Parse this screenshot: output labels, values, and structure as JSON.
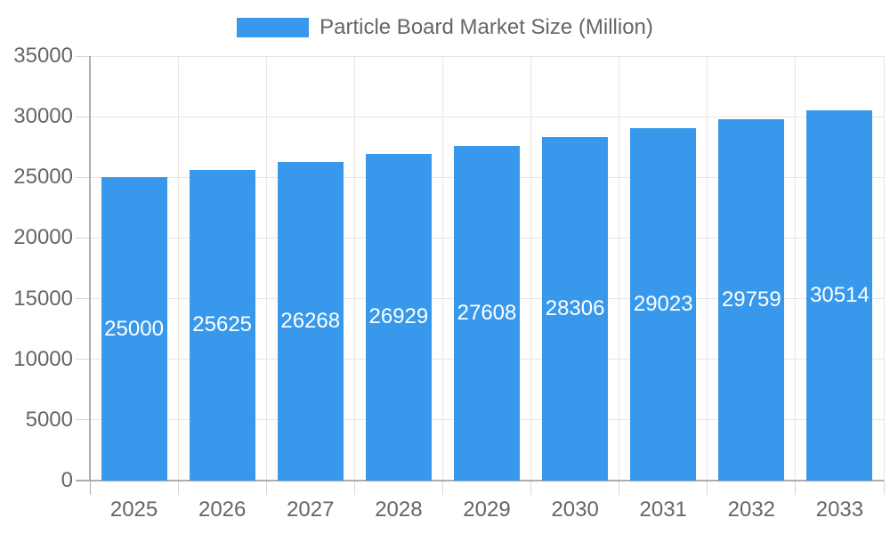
{
  "legend": {
    "label": "Particle Board Market Size (Million)"
  },
  "chart_data": {
    "type": "bar",
    "title": "Particle Board Market Size (Million)",
    "categories": [
      "2025",
      "2026",
      "2027",
      "2028",
      "2029",
      "2030",
      "2031",
      "2032",
      "2033"
    ],
    "values": [
      25000,
      25625,
      26268,
      26929,
      27608,
      28306,
      29023,
      29759,
      30514
    ],
    "series": [
      {
        "name": "Particle Board Market Size (Million)",
        "values": [
          25000,
          25625,
          26268,
          26929,
          27608,
          28306,
          29023,
          29759,
          30514
        ]
      }
    ],
    "xlabel": "",
    "ylabel": "",
    "ylim": [
      0,
      35000
    ],
    "ytick_step": 5000,
    "ytick_labels": [
      "0",
      "5000",
      "10000",
      "15000",
      "20000",
      "25000",
      "30000",
      "35000"
    ],
    "grid": true,
    "legend_position": "top",
    "value_labels_position": "inside-middle",
    "colors": {
      "bar": "#3899EC",
      "grid": "#E6E6E6",
      "axis": "#ADADAD",
      "tick": "#D6D6D6",
      "text": "#666666",
      "value_label": "#FFFFFF",
      "background": "#FFFFFF"
    }
  }
}
